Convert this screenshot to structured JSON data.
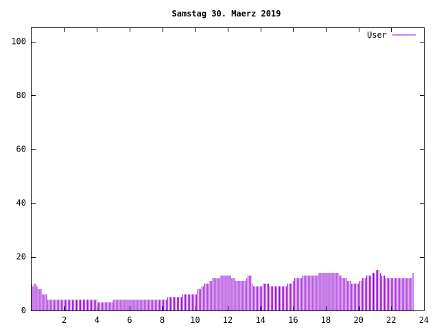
{
  "chart_data": {
    "type": "bar",
    "title": "Samstag 30. Maerz 2019",
    "xlabel": "",
    "ylabel": "",
    "xlim": [
      0,
      24
    ],
    "ylim": [
      0,
      105
    ],
    "xticks": [
      2,
      4,
      6,
      8,
      10,
      12,
      14,
      16,
      18,
      20,
      22,
      24
    ],
    "yticks": [
      0,
      20,
      40,
      60,
      80,
      100
    ],
    "grid": false,
    "legend_position": "top-right",
    "series": [
      {
        "name": "User",
        "color": "#9400d3",
        "bin_minutes": 5,
        "values": [
          10,
          9,
          10,
          10,
          9,
          8,
          8,
          8,
          6,
          6,
          6,
          6,
          4,
          4,
          4,
          4,
          4,
          4,
          4,
          4,
          4,
          4,
          4,
          4,
          4,
          4,
          4,
          4,
          4,
          4,
          4,
          4,
          4,
          4,
          4,
          4,
          4,
          4,
          4,
          4,
          4,
          4,
          4,
          4,
          4,
          4,
          4,
          4,
          4,
          3,
          3,
          3,
          3,
          3,
          3,
          3,
          3,
          3,
          3,
          3,
          4,
          4,
          4,
          4,
          4,
          4,
          4,
          4,
          4,
          4,
          4,
          4,
          4,
          4,
          4,
          4,
          4,
          4,
          4,
          4,
          4,
          4,
          4,
          4,
          4,
          4,
          4,
          4,
          4,
          4,
          4,
          4,
          4,
          4,
          4,
          4,
          4,
          4,
          4,
          4,
          5,
          5,
          5,
          5,
          5,
          5,
          5,
          5,
          5,
          5,
          5,
          6,
          6,
          6,
          6,
          6,
          6,
          6,
          6,
          6,
          6,
          6,
          8,
          8,
          8,
          9,
          9,
          10,
          10,
          10,
          10,
          11,
          11,
          12,
          12,
          12,
          12,
          12,
          12,
          13,
          13,
          13,
          13,
          13,
          13,
          13,
          13,
          12,
          12,
          12,
          11,
          11,
          11,
          11,
          11,
          11,
          11,
          11,
          12,
          13,
          13,
          13,
          10,
          9,
          9,
          9,
          9,
          9,
          9,
          9,
          10,
          10,
          10,
          10,
          10,
          9,
          9,
          9,
          9,
          9,
          9,
          9,
          9,
          9,
          9,
          9,
          9,
          9,
          10,
          10,
          10,
          10,
          11,
          12,
          12,
          12,
          12,
          12,
          12,
          13,
          13,
          13,
          13,
          13,
          13,
          13,
          13,
          13,
          13,
          13,
          13,
          14,
          14,
          14,
          14,
          14,
          14,
          14,
          14,
          14,
          14,
          14,
          14,
          14,
          14,
          14,
          13,
          13,
          12,
          12,
          12,
          12,
          11,
          11,
          11,
          10,
          10,
          10,
          10,
          10,
          10,
          11,
          11,
          12,
          12,
          12,
          13,
          13,
          13,
          13,
          14,
          14,
          14,
          15,
          15,
          15,
          14,
          13,
          13,
          13,
          12,
          12,
          12,
          12,
          12,
          12,
          12,
          12,
          12,
          12,
          12,
          12,
          12,
          12,
          12,
          12,
          12,
          12,
          12,
          12,
          14
        ]
      }
    ]
  }
}
